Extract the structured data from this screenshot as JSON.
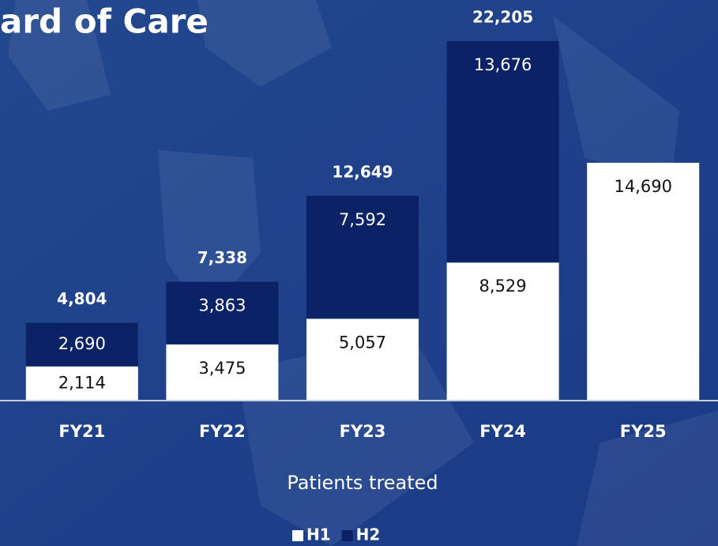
{
  "chart_data": {
    "type": "stacked-bar",
    "title": "ard of Care",
    "x_axis_label": "Patients treated",
    "categories": [
      "FY21",
      "FY22",
      "FY23",
      "FY24",
      "FY25"
    ],
    "series": [
      {
        "name": "H1",
        "color": "#ffffff",
        "label_color": "#111111",
        "values": [
          2114,
          3475,
          5057,
          8529,
          14690
        ],
        "value_labels": [
          "2,114",
          "3,475",
          "5,057",
          "8,529",
          "14,690"
        ]
      },
      {
        "name": "H2",
        "color": "#0b2266",
        "label_color": "#ffffff",
        "values": [
          2690,
          3863,
          7592,
          13676,
          null
        ],
        "value_labels": [
          "2,690",
          "3,863",
          "7,592",
          "13,676",
          null
        ]
      }
    ],
    "totals": {
      "values": [
        4804,
        7338,
        12649,
        22205,
        null
      ],
      "value_labels": [
        "4,804",
        "7,338",
        "12,649",
        "22,205",
        null
      ]
    },
    "ylim": [
      0,
      22205
    ],
    "legend": "bottom"
  }
}
